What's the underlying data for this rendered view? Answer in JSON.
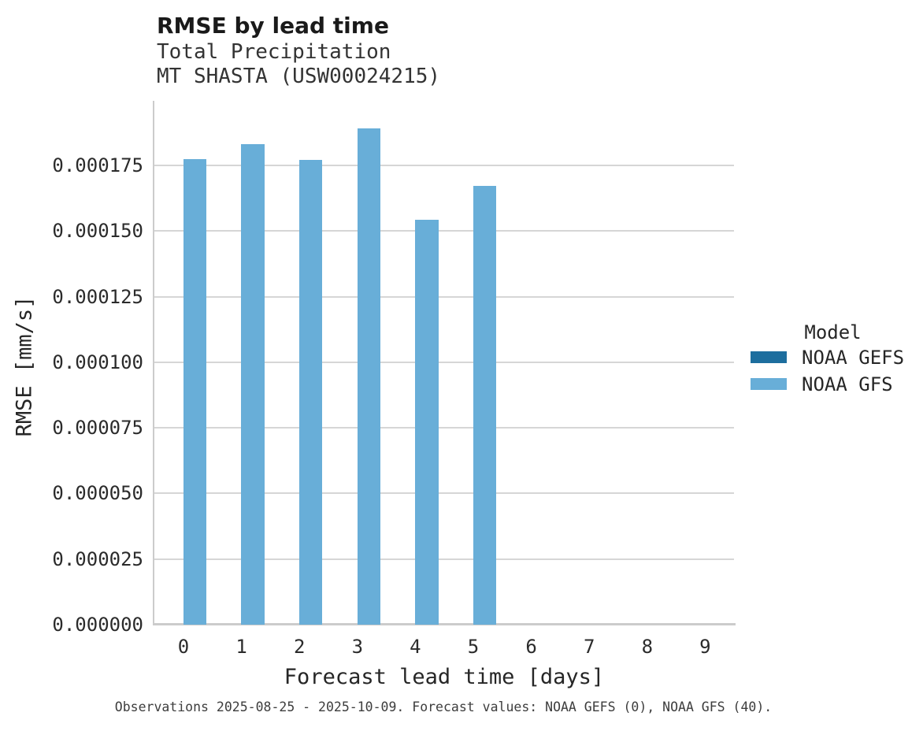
{
  "chart_data": {
    "type": "bar",
    "title": "RMSE by lead time",
    "subtitle_line1": "Total Precipitation",
    "subtitle_line2": "MT SHASTA (USW00024215)",
    "xlabel": "Forecast lead time [days]",
    "ylabel": "RMSE [mm/s]",
    "categories": [
      "0",
      "1",
      "2",
      "3",
      "4",
      "5",
      "6",
      "7",
      "8",
      "9"
    ],
    "series": [
      {
        "name": "NOAA GEFS",
        "color": "#1d6e9e",
        "values": [
          null,
          null,
          null,
          null,
          null,
          null,
          null,
          null,
          null,
          null
        ]
      },
      {
        "name": "NOAA GFS",
        "color": "#68aed8",
        "values": [
          0.0001775,
          0.000183,
          0.0001772,
          0.000189,
          0.0001542,
          0.0001671,
          null,
          null,
          null,
          null
        ]
      }
    ],
    "ylim": [
      0,
      0.0001996
    ],
    "yticks": [
      0.0,
      2.5e-05,
      5e-05,
      7.5e-05,
      0.0001,
      0.000125,
      0.00015,
      0.000175
    ],
    "ytick_labels": [
      "0.000000",
      "0.000025",
      "0.000050",
      "0.000075",
      "0.000100",
      "0.000125",
      "0.000150",
      "0.000175"
    ],
    "grid": "horizontal",
    "legend": {
      "title": "Model",
      "position": "center-right"
    },
    "caption": "Observations 2025-08-25 - 2025-10-09. Forecast values: NOAA GEFS (0), NOAA GFS (40)."
  },
  "colors": {
    "gridline": "#d6d6d6",
    "spine": "#cccccc",
    "background": "#ffffff"
  }
}
